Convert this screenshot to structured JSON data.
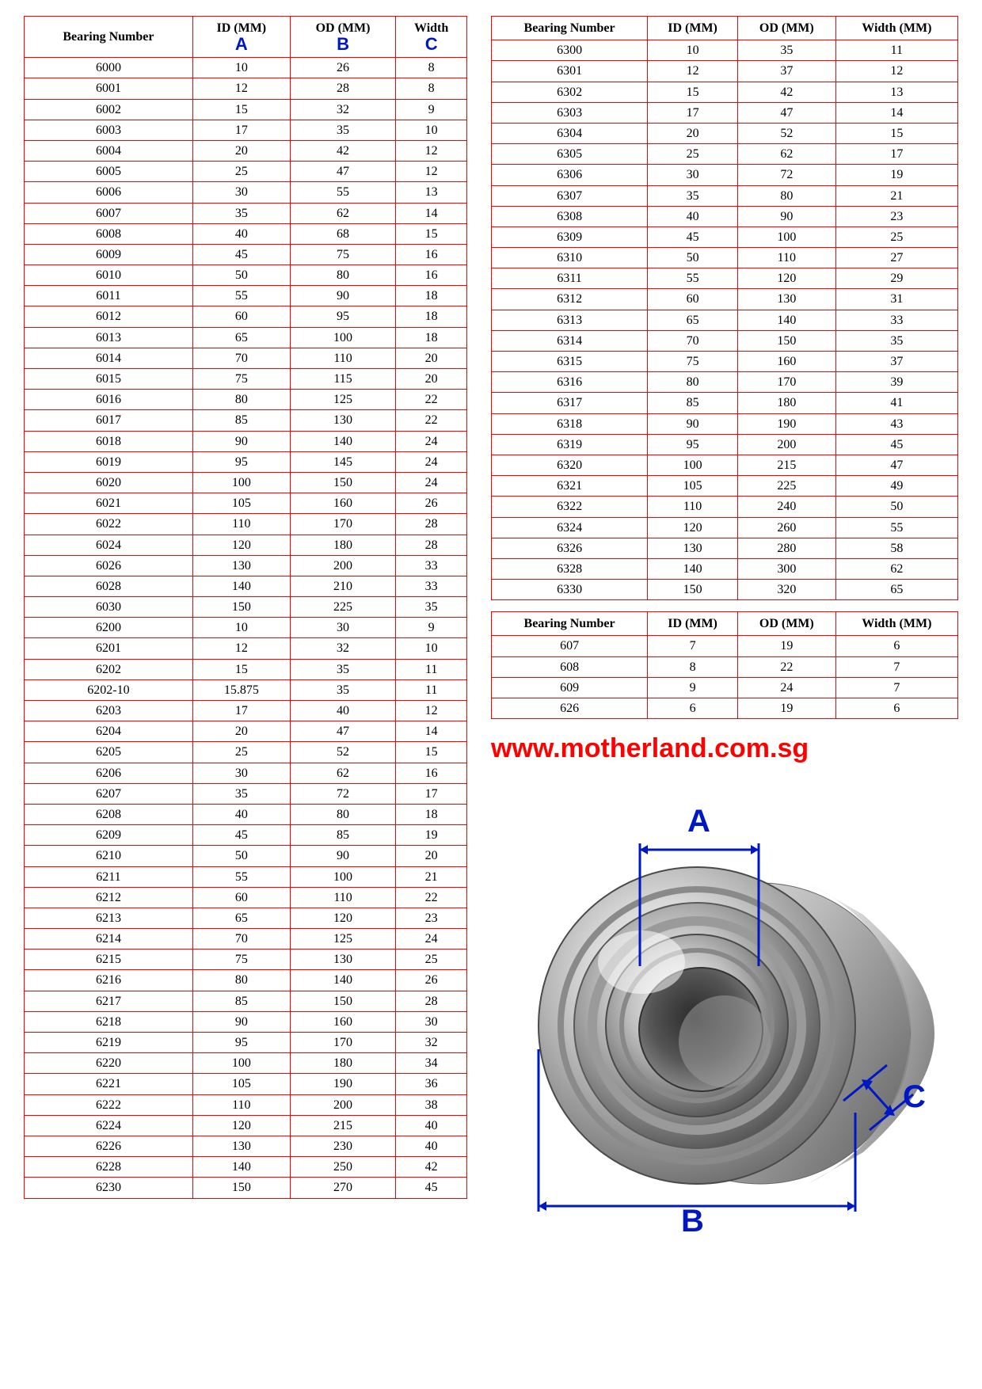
{
  "colors": {
    "table_border": "#ff0000",
    "text": "#000000",
    "dim_label": "#0018c4",
    "website": "#ff0000",
    "background": "#ffffff"
  },
  "typography": {
    "table_font": "Times New Roman",
    "label_font": "Arial",
    "table_fontsize_pt": 12,
    "header_fontsize_pt": 12,
    "dim_label_fontsize_pt": 30,
    "website_fontsize_pt": 26
  },
  "left_table": {
    "type": "table",
    "columns": [
      "Bearing Number",
      "ID (MM)",
      "OD (MM)",
      "Width"
    ],
    "sub_letters": [
      "",
      "A",
      "B",
      "C"
    ],
    "rows": [
      [
        "6000",
        "10",
        "26",
        "8"
      ],
      [
        "6001",
        "12",
        "28",
        "8"
      ],
      [
        "6002",
        "15",
        "32",
        "9"
      ],
      [
        "6003",
        "17",
        "35",
        "10"
      ],
      [
        "6004",
        "20",
        "42",
        "12"
      ],
      [
        "6005",
        "25",
        "47",
        "12"
      ],
      [
        "6006",
        "30",
        "55",
        "13"
      ],
      [
        "6007",
        "35",
        "62",
        "14"
      ],
      [
        "6008",
        "40",
        "68",
        "15"
      ],
      [
        "6009",
        "45",
        "75",
        "16"
      ],
      [
        "6010",
        "50",
        "80",
        "16"
      ],
      [
        "6011",
        "55",
        "90",
        "18"
      ],
      [
        "6012",
        "60",
        "95",
        "18"
      ],
      [
        "6013",
        "65",
        "100",
        "18"
      ],
      [
        "6014",
        "70",
        "110",
        "20"
      ],
      [
        "6015",
        "75",
        "115",
        "20"
      ],
      [
        "6016",
        "80",
        "125",
        "22"
      ],
      [
        "6017",
        "85",
        "130",
        "22"
      ],
      [
        "6018",
        "90",
        "140",
        "24"
      ],
      [
        "6019",
        "95",
        "145",
        "24"
      ],
      [
        "6020",
        "100",
        "150",
        "24"
      ],
      [
        "6021",
        "105",
        "160",
        "26"
      ],
      [
        "6022",
        "110",
        "170",
        "28"
      ],
      [
        "6024",
        "120",
        "180",
        "28"
      ],
      [
        "6026",
        "130",
        "200",
        "33"
      ],
      [
        "6028",
        "140",
        "210",
        "33"
      ],
      [
        "6030",
        "150",
        "225",
        "35"
      ],
      [
        "6200",
        "10",
        "30",
        "9"
      ],
      [
        "6201",
        "12",
        "32",
        "10"
      ],
      [
        "6202",
        "15",
        "35",
        "11"
      ],
      [
        "6202-10",
        "15.875",
        "35",
        "11"
      ],
      [
        "6203",
        "17",
        "40",
        "12"
      ],
      [
        "6204",
        "20",
        "47",
        "14"
      ],
      [
        "6205",
        "25",
        "52",
        "15"
      ],
      [
        "6206",
        "30",
        "62",
        "16"
      ],
      [
        "6207",
        "35",
        "72",
        "17"
      ],
      [
        "6208",
        "40",
        "80",
        "18"
      ],
      [
        "6209",
        "45",
        "85",
        "19"
      ],
      [
        "6210",
        "50",
        "90",
        "20"
      ],
      [
        "6211",
        "55",
        "100",
        "21"
      ],
      [
        "6212",
        "60",
        "110",
        "22"
      ],
      [
        "6213",
        "65",
        "120",
        "23"
      ],
      [
        "6214",
        "70",
        "125",
        "24"
      ],
      [
        "6215",
        "75",
        "130",
        "25"
      ],
      [
        "6216",
        "80",
        "140",
        "26"
      ],
      [
        "6217",
        "85",
        "150",
        "28"
      ],
      [
        "6218",
        "90",
        "160",
        "30"
      ],
      [
        "6219",
        "95",
        "170",
        "32"
      ],
      [
        "6220",
        "100",
        "180",
        "34"
      ],
      [
        "6221",
        "105",
        "190",
        "36"
      ],
      [
        "6222",
        "110",
        "200",
        "38"
      ],
      [
        "6224",
        "120",
        "215",
        "40"
      ],
      [
        "6226",
        "130",
        "230",
        "40"
      ],
      [
        "6228",
        "140",
        "250",
        "42"
      ],
      [
        "6230",
        "150",
        "270",
        "45"
      ]
    ]
  },
  "right_table_1": {
    "type": "table",
    "columns": [
      "Bearing Number",
      "ID (MM)",
      "OD (MM)",
      "Width (MM)"
    ],
    "rows": [
      [
        "6300",
        "10",
        "35",
        "11"
      ],
      [
        "6301",
        "12",
        "37",
        "12"
      ],
      [
        "6302",
        "15",
        "42",
        "13"
      ],
      [
        "6303",
        "17",
        "47",
        "14"
      ],
      [
        "6304",
        "20",
        "52",
        "15"
      ],
      [
        "6305",
        "25",
        "62",
        "17"
      ],
      [
        "6306",
        "30",
        "72",
        "19"
      ],
      [
        "6307",
        "35",
        "80",
        "21"
      ],
      [
        "6308",
        "40",
        "90",
        "23"
      ],
      [
        "6309",
        "45",
        "100",
        "25"
      ],
      [
        "6310",
        "50",
        "110",
        "27"
      ],
      [
        "6311",
        "55",
        "120",
        "29"
      ],
      [
        "6312",
        "60",
        "130",
        "31"
      ],
      [
        "6313",
        "65",
        "140",
        "33"
      ],
      [
        "6314",
        "70",
        "150",
        "35"
      ],
      [
        "6315",
        "75",
        "160",
        "37"
      ],
      [
        "6316",
        "80",
        "170",
        "39"
      ],
      [
        "6317",
        "85",
        "180",
        "41"
      ],
      [
        "6318",
        "90",
        "190",
        "43"
      ],
      [
        "6319",
        "95",
        "200",
        "45"
      ],
      [
        "6320",
        "100",
        "215",
        "47"
      ],
      [
        "6321",
        "105",
        "225",
        "49"
      ],
      [
        "6322",
        "110",
        "240",
        "50"
      ],
      [
        "6324",
        "120",
        "260",
        "55"
      ],
      [
        "6326",
        "130",
        "280",
        "58"
      ],
      [
        "6328",
        "140",
        "300",
        "62"
      ],
      [
        "6330",
        "150",
        "320",
        "65"
      ]
    ]
  },
  "right_table_2": {
    "type": "table",
    "columns": [
      "Bearing Number",
      "ID (MM)",
      "OD (MM)",
      "Width (MM)"
    ],
    "rows": [
      [
        "607",
        "7",
        "19",
        "6"
      ],
      [
        "608",
        "8",
        "22",
        "7"
      ],
      [
        "609",
        "9",
        "24",
        "7"
      ],
      [
        "626",
        "6",
        "19",
        "6"
      ]
    ]
  },
  "website_url": "www.motherland.com.sg",
  "diagram": {
    "type": "infographic",
    "labels": {
      "inner_diameter": "A",
      "outer_diameter": "B",
      "width": "C"
    },
    "label_color": "#0018c4",
    "line_color": "#0018c4",
    "bearing_fill_light": "#e8e8e8",
    "bearing_fill_mid": "#b8b8b8",
    "bearing_fill_dark": "#707070",
    "bearing_highlight": "#ffffff"
  }
}
